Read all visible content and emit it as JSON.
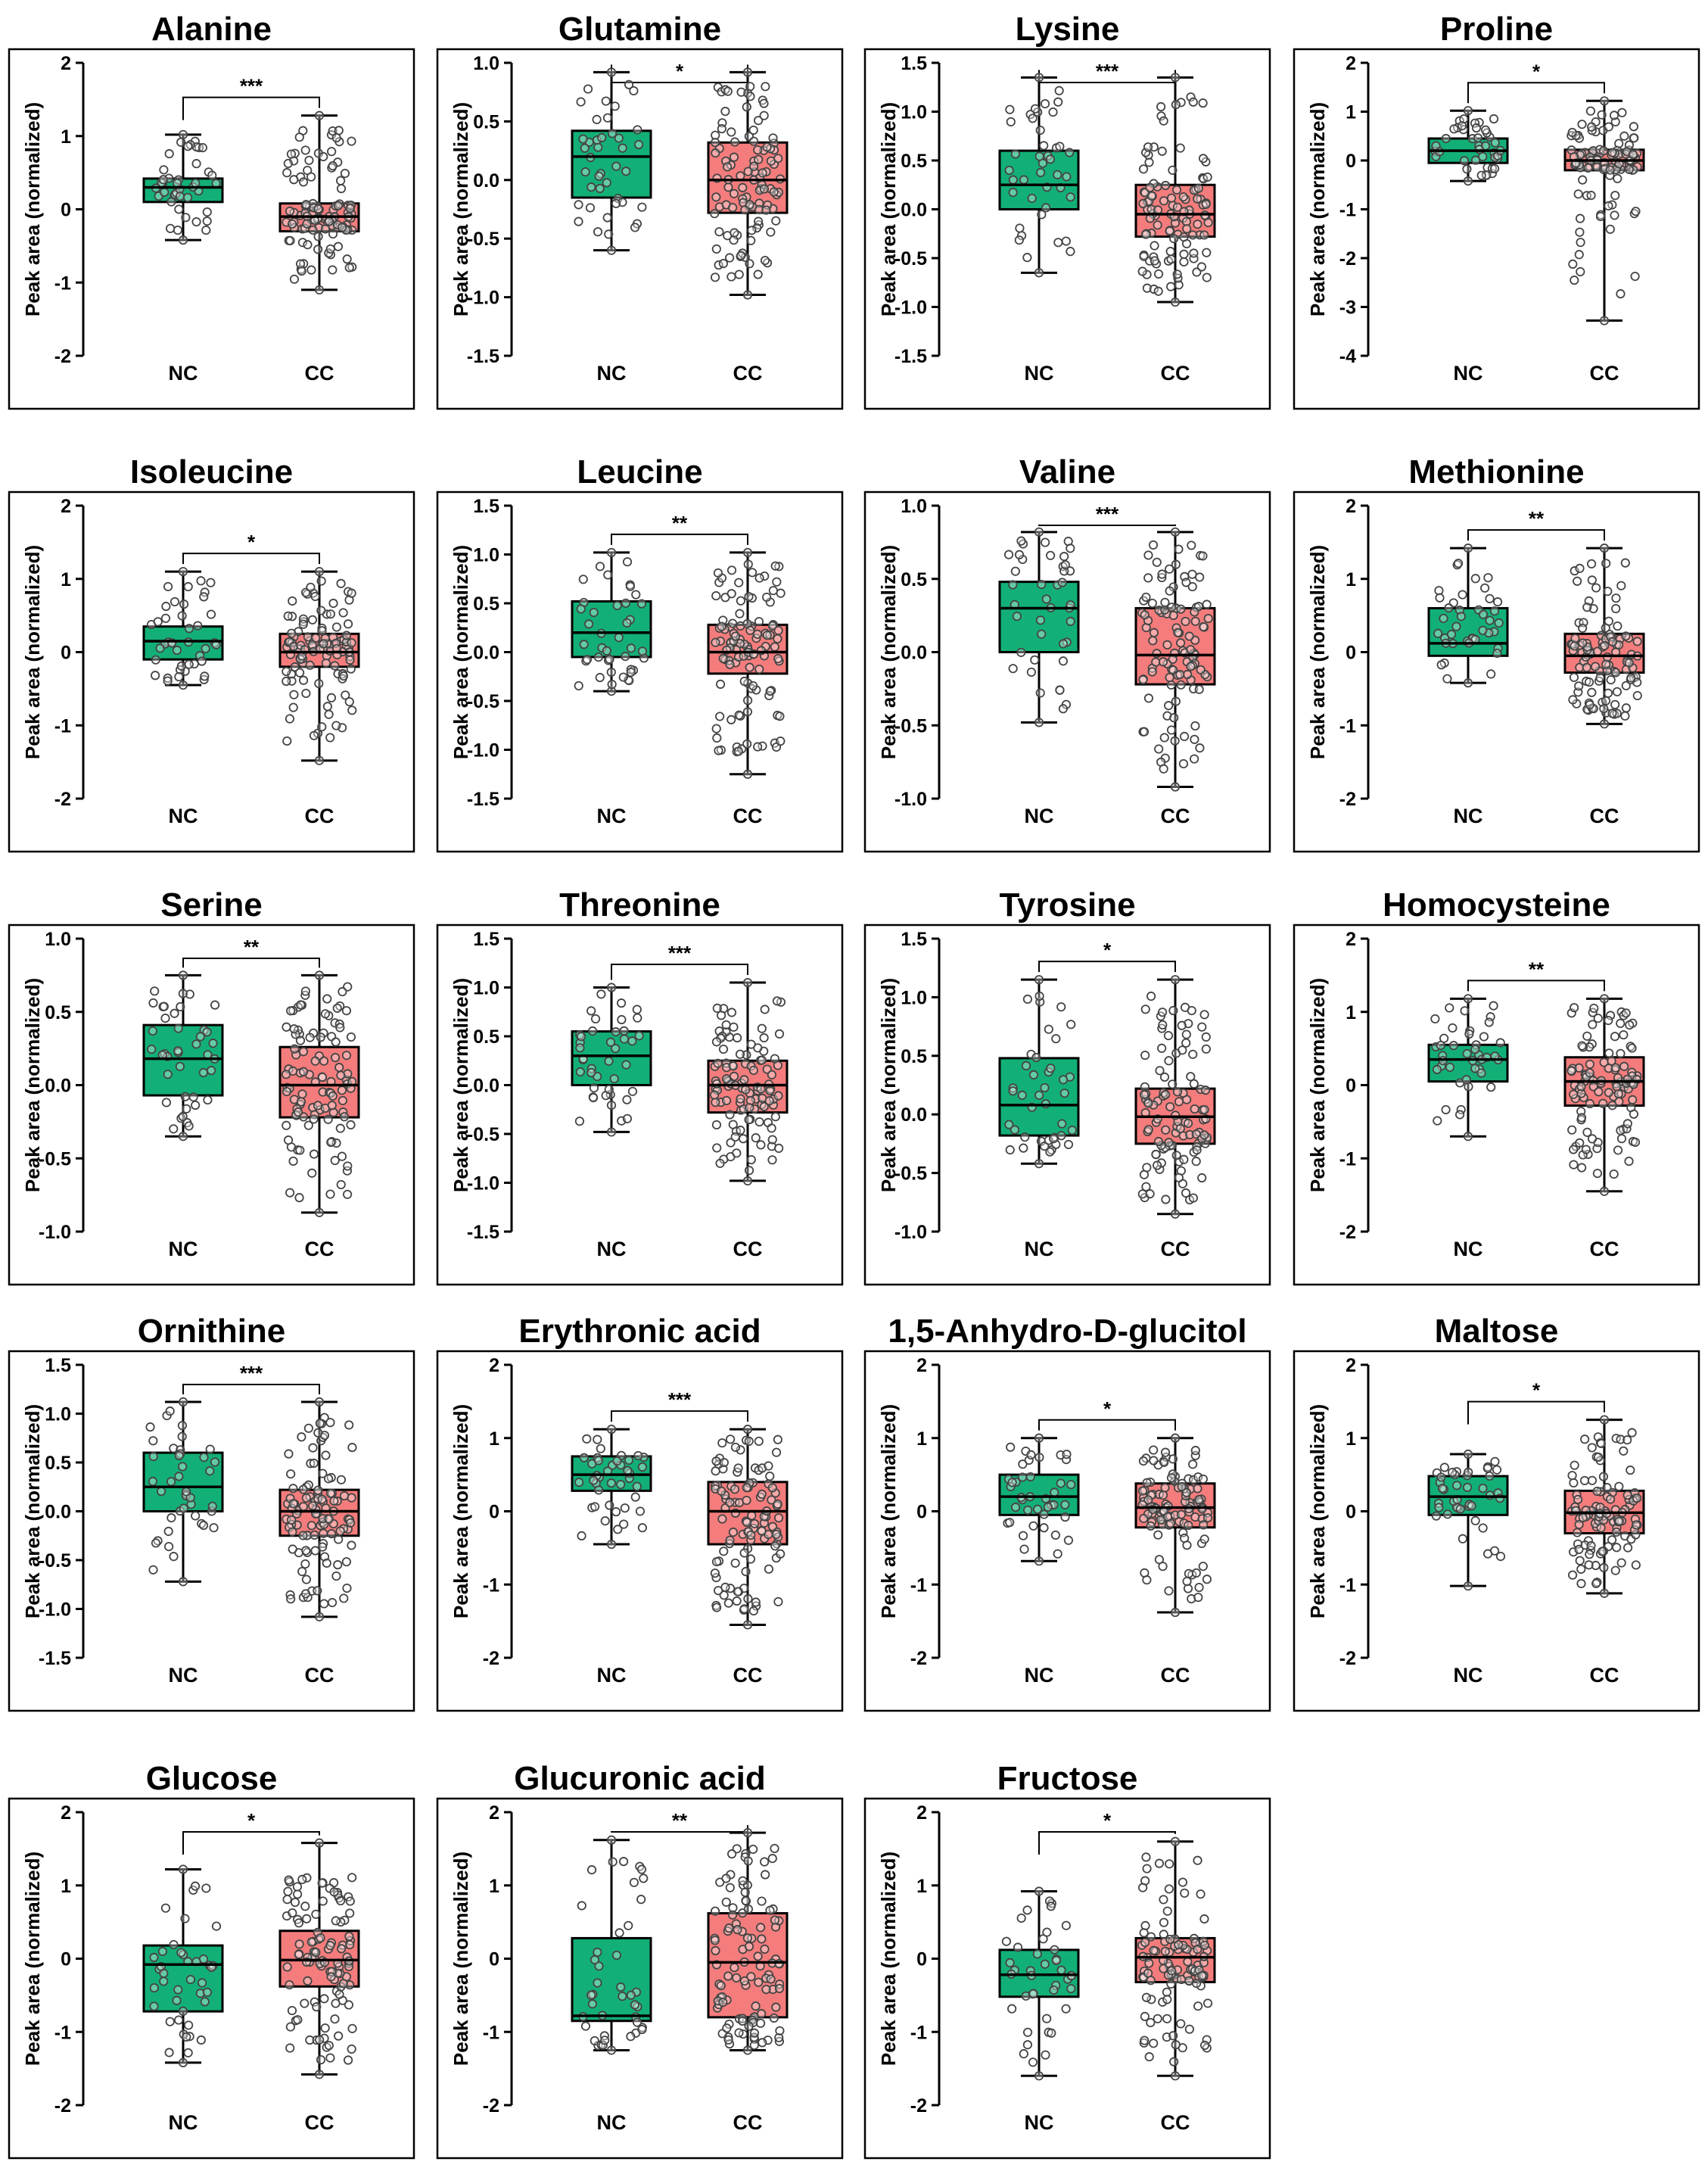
{
  "figure": {
    "ylabel": "Peak area (normalized)",
    "group_labels": [
      "NC",
      "CC"
    ],
    "colors": {
      "nc_fill": "#12B076",
      "cc_fill": "#F47C7C",
      "stroke": "#000000",
      "dot": "#444444"
    }
  },
  "chart_data": [
    {
      "type": "box",
      "title": "Alanine",
      "ylim": [
        -2,
        2
      ],
      "yticks": [
        "2",
        "1",
        "0",
        "-1",
        "-2"
      ],
      "significance": "***",
      "series": [
        {
          "name": "NC",
          "q1": 0.1,
          "median": 0.3,
          "q3": 0.42,
          "min": -0.42,
          "max": 1.02,
          "n": 42
        },
        {
          "name": "CC",
          "q1": -0.3,
          "median": -0.1,
          "q3": 0.08,
          "min": -1.1,
          "max": 1.28,
          "n": 110
        }
      ]
    },
    {
      "type": "box",
      "title": "Glutamine",
      "ylim": [
        -1.5,
        1
      ],
      "yticks": [
        "1.0",
        "0.5",
        "0.0",
        "-0.5",
        "-1.0",
        "-1.5"
      ],
      "significance": "*",
      "series": [
        {
          "name": "NC",
          "q1": -0.15,
          "median": 0.2,
          "q3": 0.42,
          "min": -0.6,
          "max": 0.92,
          "n": 42
        },
        {
          "name": "CC",
          "q1": -0.28,
          "median": 0.0,
          "q3": 0.32,
          "min": -0.98,
          "max": 0.92,
          "n": 110
        }
      ]
    },
    {
      "type": "box",
      "title": "Lysine",
      "ylim": [
        -1.5,
        1.5
      ],
      "yticks": [
        "1.5",
        "1.0",
        "0.5",
        "0.0",
        "-0.5",
        "-1.0",
        "-1.5"
      ],
      "significance": "***",
      "series": [
        {
          "name": "NC",
          "q1": 0.0,
          "median": 0.25,
          "q3": 0.6,
          "min": -0.65,
          "max": 1.35,
          "n": 42
        },
        {
          "name": "CC",
          "q1": -0.28,
          "median": -0.05,
          "q3": 0.25,
          "min": -0.95,
          "max": 1.35,
          "n": 110
        }
      ]
    },
    {
      "type": "box",
      "title": "Proline",
      "ylim": [
        -4,
        2
      ],
      "yticks": [
        "2",
        "1",
        "0",
        "-1",
        "-2",
        "-3",
        "-4"
      ],
      "significance": "*",
      "series": [
        {
          "name": "NC",
          "q1": -0.05,
          "median": 0.2,
          "q3": 0.45,
          "min": -0.42,
          "max": 1.02,
          "n": 42
        },
        {
          "name": "CC",
          "q1": -0.2,
          "median": 0.0,
          "q3": 0.22,
          "min": -3.28,
          "max": 1.22,
          "n": 110
        }
      ]
    },
    {
      "type": "box",
      "title": "Isoleucine",
      "ylim": [
        -2,
        2
      ],
      "yticks": [
        "2",
        "1",
        "0",
        "-1",
        "-2"
      ],
      "significance": "*",
      "series": [
        {
          "name": "NC",
          "q1": -0.1,
          "median": 0.15,
          "q3": 0.35,
          "min": -0.45,
          "max": 1.1,
          "n": 42
        },
        {
          "name": "CC",
          "q1": -0.2,
          "median": 0.0,
          "q3": 0.25,
          "min": -1.48,
          "max": 1.1,
          "n": 110
        }
      ]
    },
    {
      "type": "box",
      "title": "Leucine",
      "ylim": [
        -1.5,
        1.5
      ],
      "yticks": [
        "1.5",
        "1.0",
        "0.5",
        "0.0",
        "-0.5",
        "-1.0",
        "-1.5"
      ],
      "significance": "**",
      "series": [
        {
          "name": "NC",
          "q1": -0.05,
          "median": 0.2,
          "q3": 0.52,
          "min": -0.4,
          "max": 1.02,
          "n": 42
        },
        {
          "name": "CC",
          "q1": -0.22,
          "median": 0.0,
          "q3": 0.28,
          "min": -1.25,
          "max": 1.02,
          "n": 110
        }
      ]
    },
    {
      "type": "box",
      "title": "Valine",
      "ylim": [
        -1,
        1
      ],
      "yticks": [
        "1.0",
        "0.5",
        "0.0",
        "-0.5",
        "-1.0"
      ],
      "significance": "***",
      "series": [
        {
          "name": "NC",
          "q1": 0.0,
          "median": 0.3,
          "q3": 0.48,
          "min": -0.48,
          "max": 0.82,
          "n": 42
        },
        {
          "name": "CC",
          "q1": -0.22,
          "median": -0.02,
          "q3": 0.3,
          "min": -0.92,
          "max": 0.82,
          "n": 110
        }
      ]
    },
    {
      "type": "box",
      "title": "Methionine",
      "ylim": [
        -2,
        2
      ],
      "yticks": [
        "2",
        "1",
        "0",
        "-1",
        "-2"
      ],
      "significance": "**",
      "series": [
        {
          "name": "NC",
          "q1": -0.05,
          "median": 0.12,
          "q3": 0.6,
          "min": -0.42,
          "max": 1.42,
          "n": 42
        },
        {
          "name": "CC",
          "q1": -0.28,
          "median": -0.05,
          "q3": 0.25,
          "min": -0.98,
          "max": 1.42,
          "n": 110
        }
      ]
    },
    {
      "type": "box",
      "title": "Serine",
      "ylim": [
        -1,
        1
      ],
      "yticks": [
        "1.0",
        "0.5",
        "0.0",
        "-0.5",
        "-1.0"
      ],
      "significance": "**",
      "series": [
        {
          "name": "NC",
          "q1": -0.07,
          "median": 0.18,
          "q3": 0.41,
          "min": -0.35,
          "max": 0.75,
          "n": 42
        },
        {
          "name": "CC",
          "q1": -0.22,
          "median": 0.0,
          "q3": 0.26,
          "min": -0.87,
          "max": 0.75,
          "n": 110
        }
      ]
    },
    {
      "type": "box",
      "title": "Threonine",
      "ylim": [
        -1.5,
        1.5
      ],
      "yticks": [
        "1.5",
        "1.0",
        "0.5",
        "0.0",
        "-0.5",
        "-1.0",
        "-1.5"
      ],
      "significance": "***",
      "series": [
        {
          "name": "NC",
          "q1": 0.0,
          "median": 0.3,
          "q3": 0.55,
          "min": -0.48,
          "max": 1.0,
          "n": 42
        },
        {
          "name": "CC",
          "q1": -0.28,
          "median": 0.0,
          "q3": 0.25,
          "min": -0.98,
          "max": 1.05,
          "n": 110
        }
      ]
    },
    {
      "type": "box",
      "title": "Tyrosine",
      "ylim": [
        -1,
        1.5
      ],
      "yticks": [
        "1.5",
        "1.0",
        "0.5",
        "0.0",
        "-0.5",
        "-1.0"
      ],
      "significance": "*",
      "series": [
        {
          "name": "NC",
          "q1": -0.18,
          "median": 0.08,
          "q3": 0.48,
          "min": -0.42,
          "max": 1.15,
          "n": 42
        },
        {
          "name": "CC",
          "q1": -0.25,
          "median": -0.02,
          "q3": 0.22,
          "min": -0.85,
          "max": 1.15,
          "n": 110
        }
      ]
    },
    {
      "type": "box",
      "title": "Homocysteine",
      "ylim": [
        -2,
        2
      ],
      "yticks": [
        "2",
        "1",
        "0",
        "-1",
        "-2"
      ],
      "significance": "**",
      "series": [
        {
          "name": "NC",
          "q1": 0.05,
          "median": 0.35,
          "q3": 0.55,
          "min": -0.7,
          "max": 1.18,
          "n": 42
        },
        {
          "name": "CC",
          "q1": -0.28,
          "median": 0.05,
          "q3": 0.38,
          "min": -1.45,
          "max": 1.18,
          "n": 110
        }
      ]
    },
    {
      "type": "box",
      "title": "Ornithine",
      "ylim": [
        -1.5,
        1.5
      ],
      "yticks": [
        "1.5",
        "1.0",
        "0.5",
        "0.0",
        "-0.5",
        "-1.0",
        "-1.5"
      ],
      "significance": "***",
      "series": [
        {
          "name": "NC",
          "q1": 0.0,
          "median": 0.25,
          "q3": 0.6,
          "min": -0.72,
          "max": 1.12,
          "n": 42
        },
        {
          "name": "CC",
          "q1": -0.25,
          "median": 0.0,
          "q3": 0.22,
          "min": -1.08,
          "max": 1.12,
          "n": 110
        }
      ]
    },
    {
      "type": "box",
      "title": "Erythronic acid",
      "ylim": [
        -2,
        2
      ],
      "yticks": [
        "2",
        "1",
        "0",
        "-1",
        "-2"
      ],
      "significance": "***",
      "series": [
        {
          "name": "NC",
          "q1": 0.28,
          "median": 0.5,
          "q3": 0.75,
          "min": -0.45,
          "max": 1.12,
          "n": 42
        },
        {
          "name": "CC",
          "q1": -0.45,
          "median": 0.0,
          "q3": 0.4,
          "min": -1.55,
          "max": 1.12,
          "n": 110
        }
      ]
    },
    {
      "type": "box",
      "title": "1,5-Anhydro-D-glucitol",
      "ylim": [
        -2,
        2
      ],
      "yticks": [
        "2",
        "1",
        "0",
        "-1",
        "-2"
      ],
      "significance": "*",
      "series": [
        {
          "name": "NC",
          "q1": -0.05,
          "median": 0.2,
          "q3": 0.5,
          "min": -0.68,
          "max": 1.0,
          "n": 42
        },
        {
          "name": "CC",
          "q1": -0.22,
          "median": 0.05,
          "q3": 0.38,
          "min": -1.38,
          "max": 1.0,
          "n": 110
        }
      ]
    },
    {
      "type": "box",
      "title": "Maltose",
      "ylim": [
        -2,
        2
      ],
      "yticks": [
        "2",
        "1",
        "0",
        "-1",
        "-2"
      ],
      "significance": "*",
      "series": [
        {
          "name": "NC",
          "q1": -0.05,
          "median": 0.2,
          "q3": 0.48,
          "min": -1.02,
          "max": 0.78,
          "n": 42
        },
        {
          "name": "CC",
          "q1": -0.3,
          "median": -0.02,
          "q3": 0.28,
          "min": -1.12,
          "max": 1.25,
          "n": 110
        }
      ]
    },
    {
      "type": "box",
      "title": "Glucose",
      "ylim": [
        -2,
        2
      ],
      "yticks": [
        "2",
        "1",
        "0",
        "-1",
        "-2"
      ],
      "significance": "*",
      "series": [
        {
          "name": "NC",
          "q1": -0.72,
          "median": -0.08,
          "q3": 0.18,
          "min": -1.42,
          "max": 1.22,
          "n": 42
        },
        {
          "name": "CC",
          "q1": -0.38,
          "median": -0.02,
          "q3": 0.38,
          "min": -1.58,
          "max": 1.58,
          "n": 110
        }
      ]
    },
    {
      "type": "box",
      "title": "Glucuronic acid",
      "ylim": [
        -2,
        2
      ],
      "yticks": [
        "2",
        "1",
        "0",
        "-1",
        "-2"
      ],
      "significance": "**",
      "series": [
        {
          "name": "NC",
          "q1": -0.85,
          "median": -0.78,
          "q3": 0.28,
          "min": -1.25,
          "max": 1.62,
          "n": 42
        },
        {
          "name": "CC",
          "q1": -0.8,
          "median": -0.05,
          "q3": 0.62,
          "min": -1.25,
          "max": 1.72,
          "n": 110
        }
      ]
    },
    {
      "type": "box",
      "title": "Fructose",
      "ylim": [
        -2,
        2
      ],
      "yticks": [
        "2",
        "1",
        "0",
        "-1",
        "-2"
      ],
      "significance": "*",
      "series": [
        {
          "name": "NC",
          "q1": -0.52,
          "median": -0.22,
          "q3": 0.12,
          "min": -1.6,
          "max": 0.92,
          "n": 42
        },
        {
          "name": "CC",
          "q1": -0.32,
          "median": 0.02,
          "q3": 0.28,
          "min": -1.6,
          "max": 1.6,
          "n": 110
        }
      ]
    }
  ]
}
